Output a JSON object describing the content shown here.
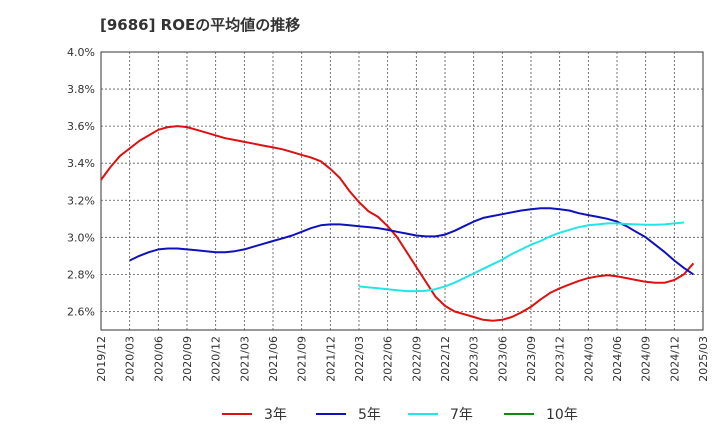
{
  "chart_data": {
    "type": "line",
    "title": "[9686]  ROEの平均値の推移",
    "xlabel": "",
    "ylabel": "",
    "ylim": [
      2.5,
      4.0
    ],
    "y_ticks": [
      2.6,
      2.8,
      3.0,
      3.2,
      3.4,
      3.6,
      3.8,
      4.0
    ],
    "y_tick_labels": [
      "2.6%",
      "2.8%",
      "3.0%",
      "3.2%",
      "3.4%",
      "3.6%",
      "3.8%",
      "4.0%"
    ],
    "x_tick_labels": [
      "2019/12",
      "2020/03",
      "2020/06",
      "2020/09",
      "2020/12",
      "2021/03",
      "2021/06",
      "2021/09",
      "2021/12",
      "2022/03",
      "2022/06",
      "2022/09",
      "2022/12",
      "2023/03",
      "2023/06",
      "2023/09",
      "2023/12",
      "2024/03",
      "2024/06",
      "2024/09",
      "2024/12",
      "2025/03"
    ],
    "grid": true,
    "legend_position": "bottom",
    "series": [
      {
        "name": "3年",
        "color": "#dd1111",
        "points": [
          [
            0,
            3.31
          ],
          [
            1,
            3.38
          ],
          [
            2,
            3.44
          ],
          [
            3,
            3.48
          ],
          [
            4,
            3.52
          ],
          [
            5,
            3.55
          ],
          [
            6,
            3.58
          ],
          [
            7,
            3.595
          ],
          [
            8,
            3.6
          ],
          [
            9,
            3.595
          ],
          [
            10,
            3.58
          ],
          [
            11,
            3.565
          ],
          [
            12,
            3.55
          ],
          [
            13,
            3.535
          ],
          [
            14,
            3.525
          ],
          [
            15,
            3.515
          ],
          [
            16,
            3.505
          ],
          [
            17,
            3.495
          ],
          [
            18,
            3.485
          ],
          [
            19,
            3.475
          ],
          [
            20,
            3.46
          ],
          [
            21,
            3.445
          ],
          [
            22,
            3.43
          ],
          [
            23,
            3.41
          ],
          [
            24,
            3.37
          ],
          [
            25,
            3.32
          ],
          [
            26,
            3.25
          ],
          [
            27,
            3.19
          ],
          [
            28,
            3.14
          ],
          [
            29,
            3.11
          ],
          [
            30,
            3.06
          ],
          [
            31,
            3.0
          ],
          [
            32,
            2.92
          ],
          [
            33,
            2.84
          ],
          [
            34,
            2.76
          ],
          [
            35,
            2.68
          ],
          [
            36,
            2.63
          ],
          [
            37,
            2.6
          ],
          [
            38,
            2.585
          ],
          [
            39,
            2.57
          ],
          [
            40,
            2.555
          ],
          [
            41,
            2.55
          ],
          [
            42,
            2.555
          ],
          [
            43,
            2.57
          ],
          [
            44,
            2.595
          ],
          [
            45,
            2.625
          ],
          [
            46,
            2.665
          ],
          [
            47,
            2.7
          ],
          [
            48,
            2.725
          ],
          [
            49,
            2.745
          ],
          [
            50,
            2.765
          ],
          [
            51,
            2.78
          ],
          [
            52,
            2.79
          ],
          [
            53,
            2.795
          ],
          [
            54,
            2.79
          ],
          [
            55,
            2.78
          ],
          [
            56,
            2.77
          ],
          [
            57,
            2.76
          ],
          [
            58,
            2.755
          ],
          [
            59,
            2.755
          ],
          [
            60,
            2.77
          ],
          [
            61,
            2.8
          ],
          [
            62,
            2.86
          ]
        ]
      },
      {
        "name": "5年",
        "color": "#1111bb",
        "points": [
          [
            3,
            2.875
          ],
          [
            4,
            2.9
          ],
          [
            5,
            2.92
          ],
          [
            6,
            2.935
          ],
          [
            7,
            2.94
          ],
          [
            8,
            2.94
          ],
          [
            9,
            2.935
          ],
          [
            10,
            2.93
          ],
          [
            11,
            2.925
          ],
          [
            12,
            2.92
          ],
          [
            13,
            2.92
          ],
          [
            14,
            2.925
          ],
          [
            15,
            2.935
          ],
          [
            16,
            2.95
          ],
          [
            17,
            2.965
          ],
          [
            18,
            2.98
          ],
          [
            19,
            2.995
          ],
          [
            20,
            3.01
          ],
          [
            21,
            3.03
          ],
          [
            22,
            3.05
          ],
          [
            23,
            3.065
          ],
          [
            24,
            3.07
          ],
          [
            25,
            3.07
          ],
          [
            26,
            3.065
          ],
          [
            27,
            3.06
          ],
          [
            28,
            3.055
          ],
          [
            29,
            3.05
          ],
          [
            30,
            3.04
          ],
          [
            31,
            3.03
          ],
          [
            32,
            3.02
          ],
          [
            33,
            3.01
          ],
          [
            34,
            3.005
          ],
          [
            35,
            3.005
          ],
          [
            36,
            3.015
          ],
          [
            37,
            3.035
          ],
          [
            38,
            3.06
          ],
          [
            39,
            3.085
          ],
          [
            40,
            3.105
          ],
          [
            41,
            3.115
          ],
          [
            42,
            3.125
          ],
          [
            43,
            3.135
          ],
          [
            44,
            3.145
          ],
          [
            45,
            3.152
          ],
          [
            46,
            3.157
          ],
          [
            47,
            3.157
          ],
          [
            48,
            3.152
          ],
          [
            49,
            3.145
          ],
          [
            50,
            3.13
          ],
          [
            51,
            3.12
          ],
          [
            52,
            3.11
          ],
          [
            53,
            3.1
          ],
          [
            54,
            3.085
          ],
          [
            55,
            3.06
          ],
          [
            56,
            3.03
          ],
          [
            57,
            3.0
          ],
          [
            58,
            2.96
          ],
          [
            59,
            2.92
          ],
          [
            60,
            2.875
          ],
          [
            61,
            2.835
          ],
          [
            62,
            2.8
          ]
        ]
      },
      {
        "name": "7年",
        "color": "#22e6e6",
        "points": [
          [
            27,
            2.735
          ],
          [
            28,
            2.73
          ],
          [
            29,
            2.725
          ],
          [
            30,
            2.72
          ],
          [
            31,
            2.715
          ],
          [
            32,
            2.71
          ],
          [
            33,
            2.71
          ],
          [
            34,
            2.712
          ],
          [
            35,
            2.72
          ],
          [
            36,
            2.735
          ],
          [
            37,
            2.755
          ],
          [
            38,
            2.78
          ],
          [
            39,
            2.805
          ],
          [
            40,
            2.83
          ],
          [
            41,
            2.855
          ],
          [
            42,
            2.88
          ],
          [
            43,
            2.91
          ],
          [
            44,
            2.935
          ],
          [
            45,
            2.96
          ],
          [
            46,
            2.98
          ],
          [
            47,
            3.005
          ],
          [
            48,
            3.025
          ],
          [
            49,
            3.04
          ],
          [
            50,
            3.055
          ],
          [
            51,
            3.065
          ],
          [
            52,
            3.07
          ],
          [
            53,
            3.075
          ],
          [
            54,
            3.075
          ],
          [
            55,
            3.072
          ],
          [
            56,
            3.07
          ],
          [
            57,
            3.068
          ],
          [
            58,
            3.068
          ],
          [
            59,
            3.07
          ],
          [
            60,
            3.075
          ],
          [
            61,
            3.08
          ]
        ]
      },
      {
        "name": "10年",
        "color": "#118811",
        "points": []
      }
    ]
  }
}
